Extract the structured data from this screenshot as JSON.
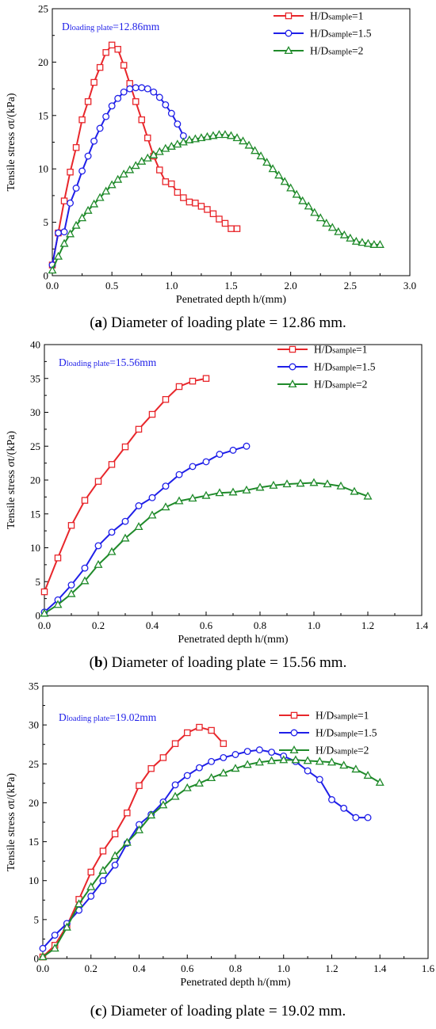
{
  "chart_data": [
    {
      "type": "line",
      "panel_letter": "a",
      "caption": "Diameter of loading plate = 12.86 mm.",
      "annotation_main": "D",
      "annotation_sub": "loading plate",
      "annotation_value": "=12.86mm",
      "xlabel": "Penetrated depth h/(mm)",
      "ylabel": "Tensile stress σt/(kPa)",
      "xlim": [
        0,
        3.0
      ],
      "ylim": [
        0,
        25
      ],
      "xticks": [
        "0.0",
        "0.5",
        "1.0",
        "1.5",
        "2.0",
        "2.5",
        "3.0"
      ],
      "yticks": [
        "0",
        "5",
        "10",
        "15",
        "20",
        "25"
      ],
      "legend_position": "top-right",
      "series": [
        {
          "name": "H/Dsample=1",
          "label_main": "H/D",
          "label_sub": "sample",
          "label_value": "=1",
          "color": "#e8262b",
          "marker": "square",
          "x": [
            0.0,
            0.05,
            0.1,
            0.15,
            0.2,
            0.25,
            0.3,
            0.35,
            0.4,
            0.45,
            0.5,
            0.55,
            0.6,
            0.65,
            0.7,
            0.75,
            0.8,
            0.85,
            0.9,
            0.95,
            1.0,
            1.05,
            1.1,
            1.15,
            1.2,
            1.25,
            1.3,
            1.35,
            1.4,
            1.45,
            1.5,
            1.55
          ],
          "y": [
            1.0,
            4.0,
            7.0,
            9.7,
            12.0,
            14.6,
            16.3,
            18.1,
            19.5,
            20.9,
            21.6,
            21.2,
            19.7,
            18.0,
            16.3,
            14.6,
            12.9,
            11.2,
            9.9,
            8.8,
            8.6,
            7.8,
            7.3,
            6.9,
            6.8,
            6.5,
            6.2,
            5.8,
            5.3,
            4.9,
            4.4,
            4.4
          ]
        },
        {
          "name": "H/Dsample=1.5",
          "label_main": "H/D",
          "label_sub": "sample",
          "label_value": "=1.5",
          "color": "#1f1fe8",
          "marker": "circle",
          "x": [
            0.0,
            0.05,
            0.1,
            0.15,
            0.2,
            0.25,
            0.3,
            0.35,
            0.4,
            0.45,
            0.5,
            0.55,
            0.6,
            0.65,
            0.7,
            0.75,
            0.8,
            0.85,
            0.9,
            0.95,
            1.0,
            1.05,
            1.1
          ],
          "y": [
            1.0,
            4.0,
            4.1,
            6.8,
            8.2,
            9.8,
            11.2,
            12.6,
            13.8,
            14.9,
            15.9,
            16.6,
            17.2,
            17.5,
            17.6,
            17.6,
            17.5,
            17.2,
            16.7,
            16.0,
            15.2,
            14.2,
            13.1
          ]
        },
        {
          "name": "H/Dsample=2",
          "label_main": "H/D",
          "label_sub": "sample",
          "label_value": "=2",
          "color": "#1f8a2a",
          "marker": "triangle",
          "x": [
            0.0,
            0.05,
            0.1,
            0.15,
            0.2,
            0.25,
            0.3,
            0.35,
            0.4,
            0.45,
            0.5,
            0.55,
            0.6,
            0.65,
            0.7,
            0.75,
            0.8,
            0.85,
            0.9,
            0.95,
            1.0,
            1.05,
            1.1,
            1.15,
            1.2,
            1.25,
            1.3,
            1.35,
            1.4,
            1.45,
            1.5,
            1.55,
            1.6,
            1.65,
            1.7,
            1.75,
            1.8,
            1.85,
            1.9,
            1.95,
            2.0,
            2.05,
            2.1,
            2.15,
            2.2,
            2.25,
            2.3,
            2.35,
            2.4,
            2.45,
            2.5,
            2.55,
            2.6,
            2.65,
            2.7,
            2.75
          ],
          "y": [
            0.5,
            1.8,
            3.0,
            3.9,
            4.7,
            5.4,
            6.1,
            6.7,
            7.3,
            7.9,
            8.5,
            9.0,
            9.5,
            9.9,
            10.3,
            10.7,
            11.0,
            11.3,
            11.6,
            11.9,
            12.1,
            12.3,
            12.5,
            12.7,
            12.8,
            12.9,
            13.0,
            13.1,
            13.2,
            13.2,
            13.1,
            12.9,
            12.6,
            12.2,
            11.7,
            11.2,
            10.6,
            10.0,
            9.4,
            8.8,
            8.2,
            7.6,
            7.0,
            6.5,
            5.9,
            5.4,
            4.9,
            4.5,
            4.1,
            3.8,
            3.5,
            3.2,
            3.1,
            3.0,
            2.9,
            2.9
          ]
        }
      ]
    },
    {
      "type": "line",
      "panel_letter": "b",
      "caption": "Diameter of loading plate = 15.56 mm.",
      "annotation_main": "D",
      "annotation_sub": "loading plate",
      "annotation_value": "=15.56mm",
      "xlabel": "Penetrated depth h/(mm)",
      "ylabel": "Tensile stress σt/(kPa)",
      "xlim": [
        0,
        1.4
      ],
      "ylim": [
        0,
        40
      ],
      "xticks": [
        "0.0",
        "0.2",
        "0.4",
        "0.6",
        "0.8",
        "1.0",
        "1.2",
        "1.4"
      ],
      "yticks": [
        "0",
        "5",
        "10",
        "15",
        "20",
        "25",
        "30",
        "35",
        "40"
      ],
      "legend_position": "top-right",
      "series": [
        {
          "name": "H/Dsample=1",
          "label_main": "H/D",
          "label_sub": "sample",
          "label_value": "=1",
          "color": "#e8262b",
          "marker": "square",
          "x": [
            0.0,
            0.05,
            0.1,
            0.15,
            0.2,
            0.25,
            0.3,
            0.35,
            0.4,
            0.45,
            0.5,
            0.55,
            0.6
          ],
          "y": [
            3.5,
            8.5,
            13.3,
            17.0,
            19.8,
            22.3,
            24.9,
            27.5,
            29.7,
            31.9,
            33.8,
            34.6,
            35.0
          ]
        },
        {
          "name": "H/Dsample=1.5",
          "label_main": "H/D",
          "label_sub": "sample",
          "label_value": "=1.5",
          "color": "#1f1fe8",
          "marker": "circle",
          "x": [
            0.0,
            0.05,
            0.1,
            0.15,
            0.2,
            0.25,
            0.3,
            0.35,
            0.4,
            0.45,
            0.5,
            0.55,
            0.6,
            0.65,
            0.7,
            0.75
          ],
          "y": [
            0.5,
            2.3,
            4.5,
            7.0,
            10.3,
            12.3,
            13.9,
            16.2,
            17.4,
            19.1,
            20.8,
            22.0,
            22.7,
            23.8,
            24.4,
            25.0
          ]
        },
        {
          "name": "H/Dsample=2",
          "label_main": "H/D",
          "label_sub": "sample",
          "label_value": "=2",
          "color": "#1f8a2a",
          "marker": "triangle",
          "x": [
            0.0,
            0.05,
            0.1,
            0.15,
            0.2,
            0.25,
            0.3,
            0.35,
            0.4,
            0.45,
            0.5,
            0.55,
            0.6,
            0.65,
            0.7,
            0.75,
            0.8,
            0.85,
            0.9,
            0.95,
            1.0,
            1.05,
            1.1,
            1.15,
            1.2
          ],
          "y": [
            0.3,
            1.6,
            3.2,
            5.1,
            7.5,
            9.4,
            11.4,
            13.1,
            14.8,
            16.0,
            16.9,
            17.3,
            17.7,
            18.1,
            18.2,
            18.5,
            18.9,
            19.2,
            19.4,
            19.5,
            19.6,
            19.4,
            19.1,
            18.3,
            17.6
          ]
        }
      ]
    },
    {
      "type": "line",
      "panel_letter": "c",
      "caption": "Diameter of loading plate = 19.02 mm.",
      "annotation_main": "D",
      "annotation_sub": "loading plate",
      "annotation_value": "=19.02mm",
      "xlabel": "Penetrated depth h/(mm)",
      "ylabel": "Tensile stress σt/(kPa)",
      "xlim": [
        0,
        1.6
      ],
      "ylim": [
        0,
        35
      ],
      "xticks": [
        "0.0",
        "0.2",
        "0.4",
        "0.6",
        "0.8",
        "1.0",
        "1.2",
        "1.4",
        "1.6"
      ],
      "yticks": [
        "0",
        "5",
        "10",
        "15",
        "20",
        "25",
        "30",
        "35"
      ],
      "legend_position": "top-right",
      "series": [
        {
          "name": "H/Dsample=1",
          "label_main": "H/D",
          "label_sub": "sample",
          "label_value": "=1",
          "color": "#e8262b",
          "marker": "square",
          "x": [
            0.0,
            0.05,
            0.1,
            0.15,
            0.2,
            0.25,
            0.3,
            0.35,
            0.4,
            0.45,
            0.5,
            0.55,
            0.6,
            0.65,
            0.7,
            0.75
          ],
          "y": [
            0.2,
            1.7,
            4.2,
            7.6,
            11.1,
            13.8,
            16.0,
            18.7,
            22.2,
            24.4,
            25.8,
            27.6,
            29.0,
            29.7,
            29.3,
            27.6
          ]
        },
        {
          "name": "H/Dsample=1.5",
          "label_main": "H/D",
          "label_sub": "sample",
          "label_value": "=1.5",
          "color": "#1f1fe8",
          "marker": "circle",
          "x": [
            0.0,
            0.05,
            0.1,
            0.15,
            0.2,
            0.25,
            0.3,
            0.35,
            0.4,
            0.45,
            0.5,
            0.55,
            0.6,
            0.65,
            0.7,
            0.75,
            0.8,
            0.85,
            0.9,
            0.95,
            1.0,
            1.05,
            1.1,
            1.15,
            1.2,
            1.25,
            1.3,
            1.35
          ],
          "y": [
            1.3,
            3.0,
            4.5,
            6.2,
            8.0,
            10.0,
            12.0,
            14.8,
            17.2,
            18.5,
            20.1,
            22.3,
            23.5,
            24.5,
            25.3,
            25.8,
            26.2,
            26.6,
            26.8,
            26.5,
            26.0,
            25.3,
            24.1,
            23.0,
            20.4,
            19.3,
            18.1,
            18.1
          ]
        },
        {
          "name": "H/Dsample=2",
          "label_main": "H/D",
          "label_sub": "sample",
          "label_value": "=2",
          "color": "#1f8a2a",
          "marker": "triangle",
          "x": [
            0.0,
            0.05,
            0.1,
            0.15,
            0.2,
            0.25,
            0.3,
            0.35,
            0.4,
            0.45,
            0.5,
            0.55,
            0.6,
            0.65,
            0.7,
            0.75,
            0.8,
            0.85,
            0.9,
            0.95,
            1.0,
            1.05,
            1.1,
            1.15,
            1.2,
            1.25,
            1.3,
            1.35,
            1.4
          ],
          "y": [
            0.2,
            1.3,
            4.0,
            7.0,
            9.2,
            11.3,
            13.2,
            14.9,
            16.5,
            18.4,
            19.7,
            20.8,
            21.9,
            22.5,
            23.2,
            23.8,
            24.4,
            24.9,
            25.2,
            25.4,
            25.5,
            25.5,
            25.4,
            25.3,
            25.2,
            24.8,
            24.3,
            23.5,
            22.6
          ]
        }
      ]
    }
  ]
}
